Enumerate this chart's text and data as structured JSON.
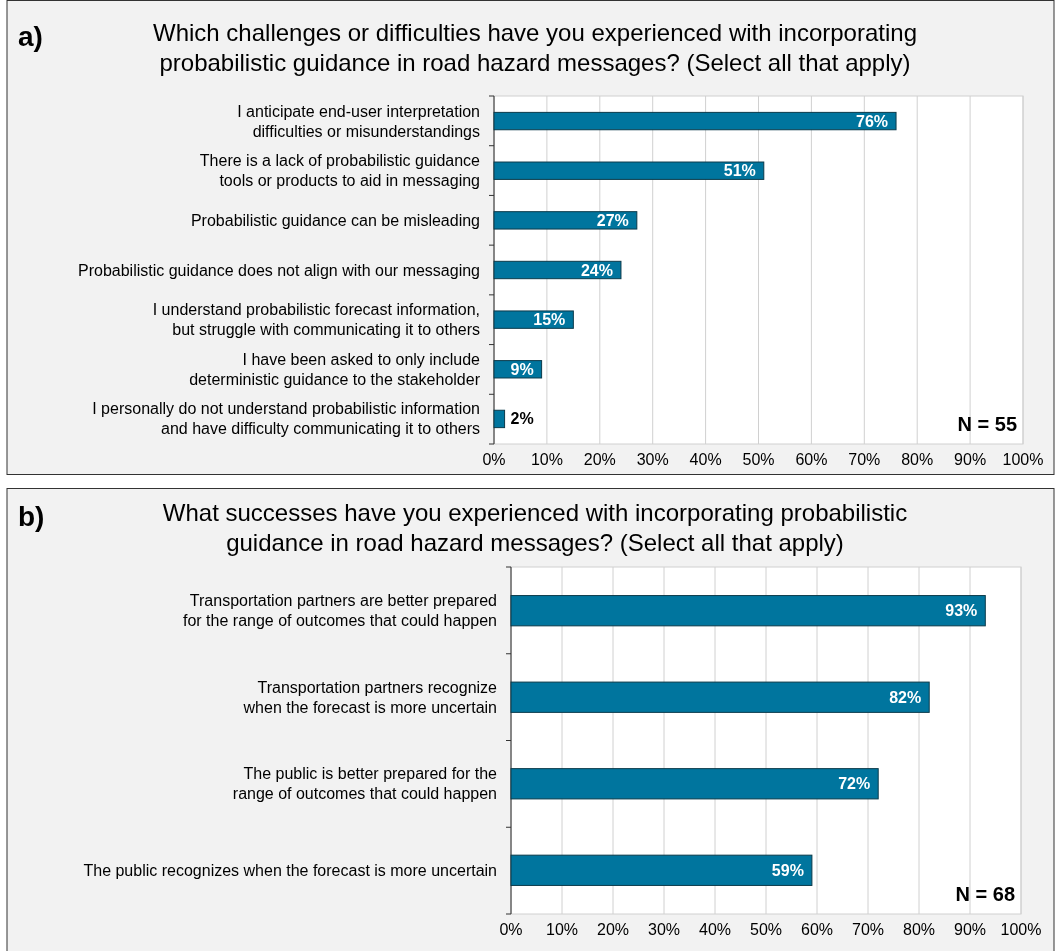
{
  "chart_data": [
    {
      "type": "bar",
      "orientation": "horizontal",
      "title": "Which challenges or difficulties have you experienced with incorporating probabilistic guidance in road hazard messages? (Select all that apply)",
      "annotations": [
        "a)",
        "N = 55"
      ],
      "categories": [
        "I anticipate end-user interpretation difficulties or misunderstandings",
        "There is a lack of probabilistic guidance tools or products to aid in messaging",
        "Probabilistic guidance can be misleading",
        "Probabilistic guidance does not align with our messaging",
        "I understand probabilistic forecast information, but struggle with communicating it to others",
        "I have been asked to only include deterministic guidance to the stakeholder",
        "I personally do not understand probabilistic information and have difficulty communicating it to others"
      ],
      "values": [
        76,
        51,
        27,
        24,
        15,
        9,
        2
      ],
      "value_labels": [
        "76%",
        "51%",
        "27%",
        "24%",
        "15%",
        "9%",
        "2%"
      ],
      "color": "#00759e",
      "xlim": [
        0,
        100
      ],
      "xticks": [
        {
          "value": 0,
          "label": "0%"
        },
        {
          "value": 10,
          "label": "10%"
        },
        {
          "value": 20,
          "label": "20%"
        },
        {
          "value": 30,
          "label": "30%"
        },
        {
          "value": 40,
          "label": "40%"
        },
        {
          "value": 50,
          "label": "50%"
        },
        {
          "value": 60,
          "label": "60%"
        },
        {
          "value": 70,
          "label": "70%"
        },
        {
          "value": 80,
          "label": "80%"
        },
        {
          "value": 90,
          "label": "90%"
        },
        {
          "value": 100,
          "label": "100%"
        }
      ],
      "grid": "x"
    },
    {
      "type": "bar",
      "orientation": "horizontal",
      "title": "What successes have you experienced with incorporating probabilistic guidance in road hazard messages? (Select all that apply)",
      "annotations": [
        "b)",
        "N = 68"
      ],
      "categories": [
        "Transportation partners are better prepared for the range of outcomes that could happen",
        "Transportation partners recognize when the forecast is more uncertain",
        "The public is better prepared for the range of outcomes that could happen",
        "The public recognizes when the forecast is more uncertain"
      ],
      "values": [
        93,
        82,
        72,
        59
      ],
      "value_labels": [
        "93%",
        "82%",
        "72%",
        "59%"
      ],
      "color": "#00759e",
      "xlim": [
        0,
        100
      ],
      "xticks": [
        {
          "value": 0,
          "label": "0%"
        },
        {
          "value": 10,
          "label": "10%"
        },
        {
          "value": 20,
          "label": "20%"
        },
        {
          "value": 30,
          "label": "30%"
        },
        {
          "value": 40,
          "label": "40%"
        },
        {
          "value": 50,
          "label": "50%"
        },
        {
          "value": 60,
          "label": "60%"
        },
        {
          "value": 70,
          "label": "70%"
        },
        {
          "value": 80,
          "label": "80%"
        },
        {
          "value": 90,
          "label": "90%"
        },
        {
          "value": 100,
          "label": "100%"
        }
      ],
      "grid": "x"
    }
  ]
}
